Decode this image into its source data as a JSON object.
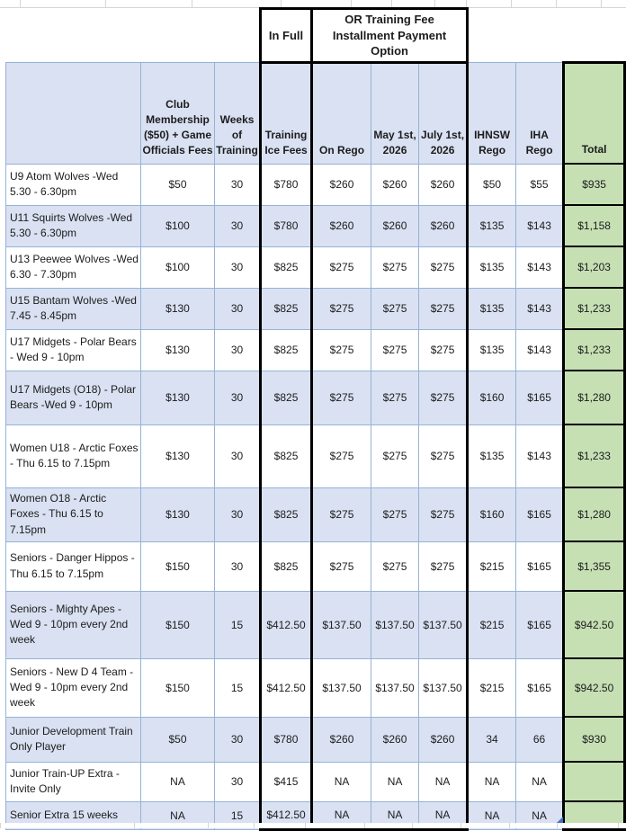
{
  "colors": {
    "row_fill_blue": "#d9e1f2",
    "total_fill_green": "#c6e0b4",
    "grid_border_blue": "#95b3d7",
    "box_border_black": "#000000"
  },
  "pre_header": {
    "in_full_label": "In Full",
    "installment_label": "OR Training Fee Installment Payment Option"
  },
  "header": {
    "columns": [
      "Club Membership ($50) + Game Officials Fees",
      "Weeks of Training",
      "Training Ice Fees",
      "On Rego",
      "May 1st, 2026",
      "July 1st, 2026",
      "IHNSW Rego",
      "IHA Rego",
      "Total"
    ]
  },
  "rows": [
    {
      "label": "U9 Atom Wolves -Wed 5.30 - 6.30pm",
      "cells": [
        "$50",
        "30",
        "$780",
        "$260",
        "$260",
        "$260",
        "$50",
        "$55",
        "$935"
      ]
    },
    {
      "label": "U11 Squirts Wolves -Wed 5.30 - 6.30pm",
      "cells": [
        "$100",
        "30",
        "$780",
        "$260",
        "$260",
        "$260",
        "$135",
        "$143",
        "$1,158"
      ]
    },
    {
      "label": "U13 Peewee Wolves -Wed 6.30 - 7.30pm",
      "cells": [
        "$100",
        "30",
        "$825",
        "$275",
        "$275",
        "$275",
        "$135",
        "$143",
        "$1,203"
      ]
    },
    {
      "label": "U15 Bantam Wolves -Wed 7.45 - 8.45pm",
      "cells": [
        "$130",
        "30",
        "$825",
        "$275",
        "$275",
        "$275",
        "$135",
        "$143",
        "$1,233"
      ]
    },
    {
      "label": "U17 Midgets - Polar Bears - Wed 9 - 10pm",
      "cells": [
        "$130",
        "30",
        "$825",
        "$275",
        "$275",
        "$275",
        "$135",
        "$143",
        "$1,233"
      ]
    },
    {
      "label": "U17 Midgets (O18) - Polar Bears -Wed 9 - 10pm",
      "cells": [
        "$130",
        "30",
        "$825",
        "$275",
        "$275",
        "$275",
        "$160",
        "$165",
        "$1,280"
      ]
    },
    {
      "label": "Women U18 - Arctic Foxes - Thu 6.15 to 7.15pm",
      "cells": [
        "$130",
        "30",
        "$825",
        "$275",
        "$275",
        "$275",
        "$135",
        "$143",
        "$1,233"
      ]
    },
    {
      "label": "Women O18 - Arctic Foxes - Thu 6.15 to 7.15pm",
      "cells": [
        "$130",
        "30",
        "$825",
        "$275",
        "$275",
        "$275",
        "$160",
        "$165",
        "$1,280"
      ]
    },
    {
      "label": "Seniors - Danger Hippos - Thu 6.15 to 7.15pm",
      "cells": [
        "$150",
        "30",
        "$825",
        "$275",
        "$275",
        "$275",
        "$215",
        "$165",
        "$1,355"
      ]
    },
    {
      "label": "Seniors - Mighty Apes - Wed 9 - 10pm every 2nd week",
      "cells": [
        "$150",
        "15",
        "$412.50",
        "$137.50",
        "$137.50",
        "$137.50",
        "$215",
        "$165",
        "$942.50"
      ]
    },
    {
      "label": "Seniors - New D 4 Team  - Wed 9 - 10pm every 2nd week",
      "cells": [
        "$150",
        "15",
        "$412.50",
        "$137.50",
        "$137.50",
        "$137.50",
        "$215",
        "$165",
        "$942.50"
      ]
    },
    {
      "label": "Junior Development Train Only Player",
      "cells": [
        "$50",
        "30",
        "$780",
        "$260",
        "$260",
        "$260",
        "34",
        "66",
        "$930"
      ]
    },
    {
      "label": "Junior Train-UP Extra - Invite Only",
      "cells": [
        "NA",
        "30",
        "$415",
        "NA",
        "NA",
        "NA",
        "NA",
        "NA",
        ""
      ]
    },
    {
      "label": "Senior Extra 15 weeks",
      "cells": [
        "NA",
        "15",
        "$412.50",
        "NA",
        "NA",
        "NA",
        "NA",
        "NA",
        ""
      ]
    }
  ]
}
